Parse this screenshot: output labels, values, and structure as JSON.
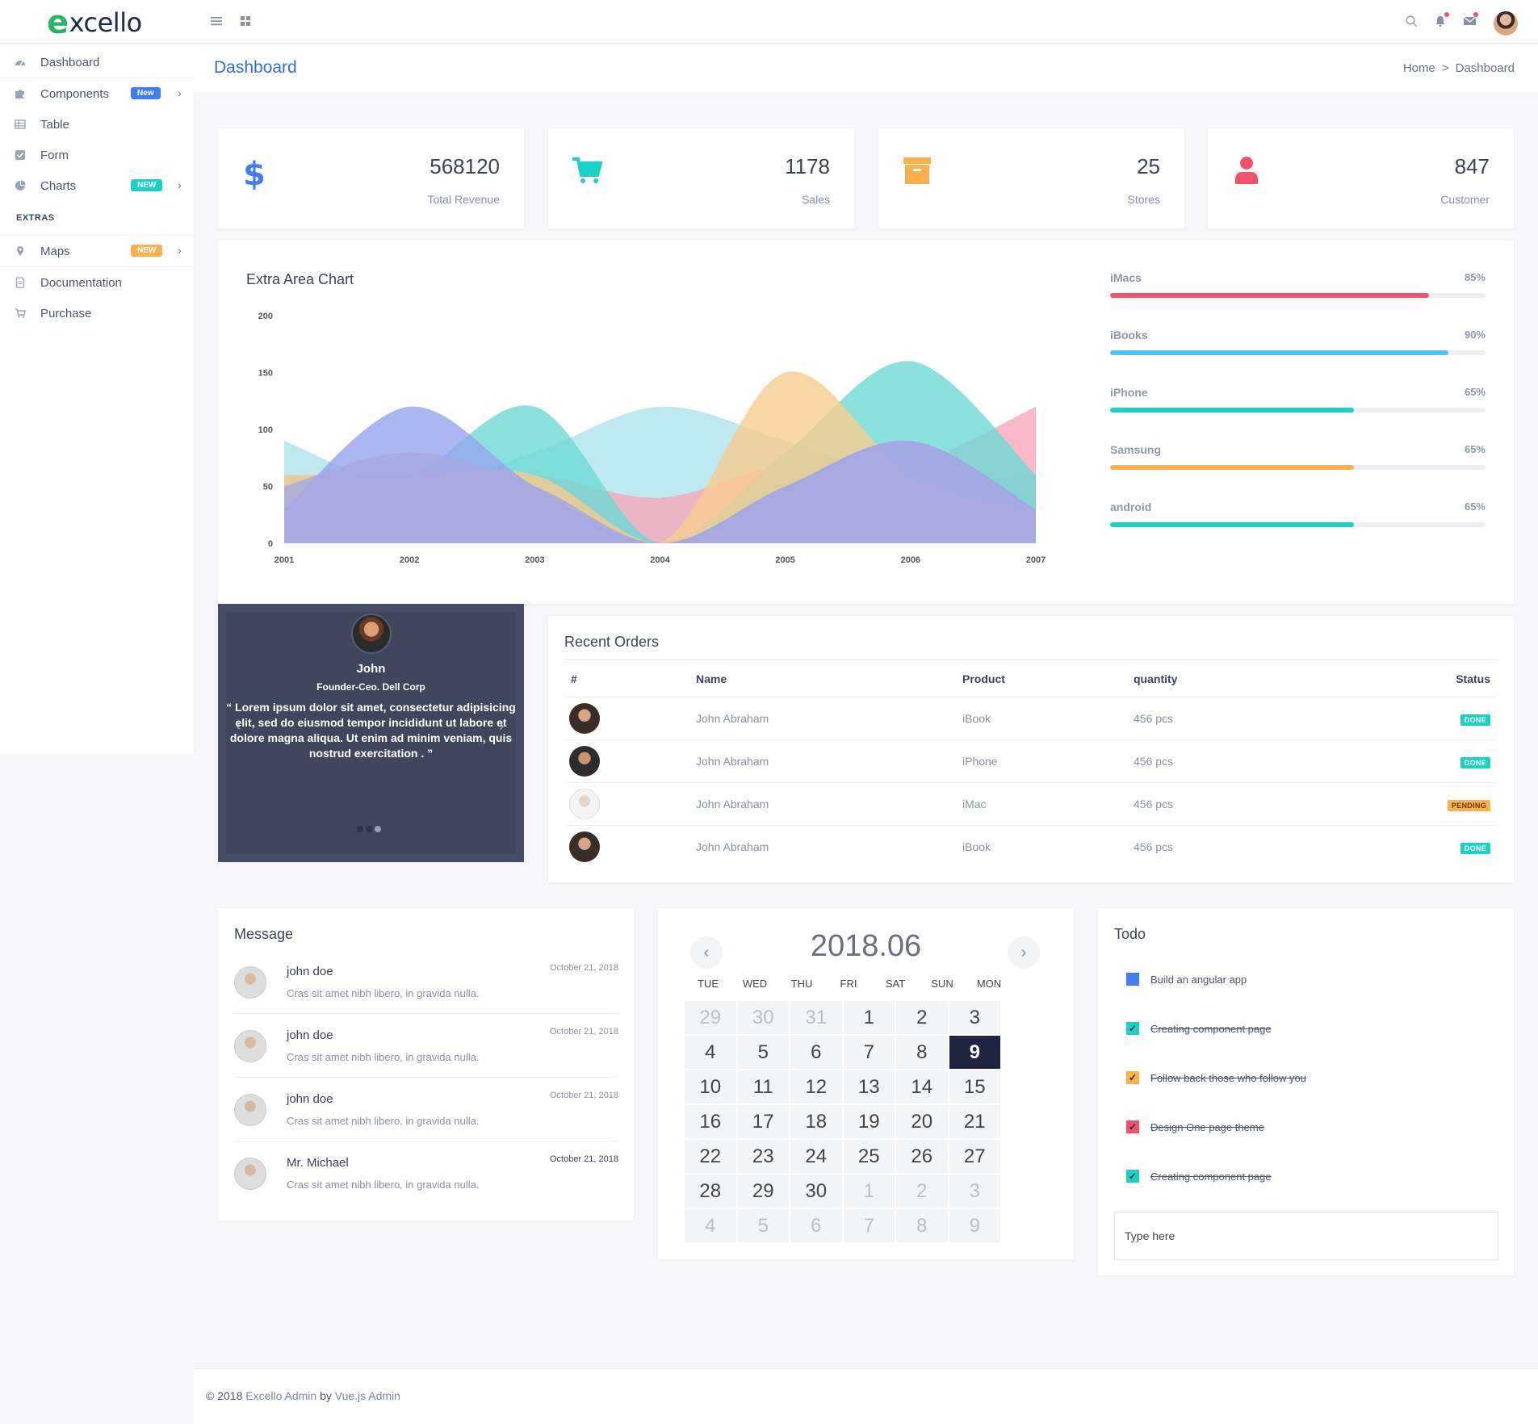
{
  "brand": {
    "logo_e": "e",
    "logo_rest": "xcello"
  },
  "topbar": {
    "icons": [
      "menu-icon",
      "grid-icon",
      "search-icon",
      "bell-icon",
      "mail-icon"
    ]
  },
  "sidebar": {
    "items": [
      {
        "label": "Dashboard",
        "icon": "dashboard-icon"
      },
      {
        "label": "Components",
        "icon": "puzzle-icon",
        "badge": "New",
        "badge_color": "#3f7ef6"
      },
      {
        "label": "Table",
        "icon": "table-icon"
      },
      {
        "label": "Form",
        "icon": "check-square-icon"
      },
      {
        "label": "Charts",
        "icon": "pie-chart-icon",
        "badge": "NEW",
        "badge_color": "#1ad1c5"
      }
    ],
    "section": "EXTRAS",
    "extras": [
      {
        "label": "Maps",
        "icon": "map-pin-icon",
        "badge": "NEW",
        "badge_color": "#f9b04d"
      },
      {
        "label": "Documentation",
        "icon": "document-icon"
      },
      {
        "label": "Purchase",
        "icon": "cart-icon"
      }
    ]
  },
  "page": {
    "title": "Dashboard",
    "breadcrumb_home": "Home",
    "breadcrumb_sep": ">",
    "breadcrumb_current": "Dashboard"
  },
  "stats": [
    {
      "value": "568120",
      "label": "Total Revenue",
      "icon": "dollar-icon",
      "color": "#3f7ef6"
    },
    {
      "value": "1178",
      "label": "Sales",
      "icon": "shopping-cart-icon",
      "color": "#1ad1c5"
    },
    {
      "value": "25",
      "label": "Stores",
      "icon": "archive-box-icon",
      "color": "#f9b04d"
    },
    {
      "value": "847",
      "label": "Customer",
      "icon": "user-icon",
      "color": "#f1536e"
    }
  ],
  "chart_data": {
    "type": "area",
    "title": "Extra Area Chart",
    "x": [
      "2001",
      "2002",
      "2003",
      "2004",
      "2005",
      "2006",
      "2007"
    ],
    "ylim": [
      0,
      200
    ],
    "yticks": [
      0,
      50,
      100,
      150,
      200
    ],
    "series": [
      {
        "color": "#aee3ee",
        "values": [
          90,
          50,
          80,
          120,
          90,
          55,
          60
        ]
      },
      {
        "color": "#f7a7bb",
        "values": [
          60,
          60,
          60,
          40,
          70,
          70,
          120
        ]
      },
      {
        "color": "#6dd9d6",
        "values": [
          60,
          60,
          120,
          0,
          80,
          160,
          60
        ]
      },
      {
        "color": "#f8cc8f",
        "values": [
          60,
          60,
          60,
          0,
          150,
          60,
          30
        ]
      },
      {
        "color": "#94a4eb",
        "values": [
          30,
          120,
          50,
          0,
          50,
          90,
          30
        ]
      },
      {
        "color": "#a6a7e0",
        "values": [
          50,
          80,
          50,
          0,
          50,
          90,
          30
        ]
      }
    ],
    "grid": false,
    "legend": "none"
  },
  "progress": [
    {
      "label": "iMacs",
      "pct": 85,
      "text": "85%",
      "color": "#f1536e"
    },
    {
      "label": "iBooks",
      "pct": 90,
      "text": "90%",
      "color": "#4fc3e8"
    },
    {
      "label": "iPhone",
      "pct": 65,
      "text": "65%",
      "color": "#1ad1c5"
    },
    {
      "label": "Samsung",
      "pct": 65,
      "text": "65%",
      "color": "#f9b04d"
    },
    {
      "label": "android",
      "pct": 65,
      "text": "65%",
      "color": "#1ad1c5"
    }
  ],
  "testimonial": {
    "name": "John",
    "role": "Founder-Ceo. Dell Corp",
    "quote": "“ Lorem ipsum dolor sit amet, consectetur adipisicing elit, sed do eiusmod tempor incididunt ut labore et dolore magna aliqua. Ut enim ad minim veniam, quis nostrud exercitation . ”",
    "prev": "‹",
    "next": "›"
  },
  "orders": {
    "title": "Recent Orders",
    "columns": [
      "#",
      "Name",
      "Product",
      "quantity",
      "Status"
    ],
    "rows": [
      {
        "name": "John Abraham",
        "product": "iBook",
        "qty": "456 pcs",
        "status": "DONE",
        "status_color": "#1ad1c5"
      },
      {
        "name": "John Abraham",
        "product": "iPhone",
        "qty": "456 pcs",
        "status": "DONE",
        "status_color": "#1ad1c5"
      },
      {
        "name": "John Abraham",
        "product": "iMac",
        "qty": "456 pcs",
        "status": "PENDING",
        "status_color": "#f9b04d"
      },
      {
        "name": "John Abraham",
        "product": "iBook",
        "qty": "456 pcs",
        "status": "DONE",
        "status_color": "#1ad1c5"
      }
    ]
  },
  "messages": {
    "title": "Message",
    "items": [
      {
        "name": "john doe",
        "text": "Cras sit amet nibh libero, in gravida nulla.",
        "date": "October 21, 2018"
      },
      {
        "name": "john doe",
        "text": "Cras sit amet nibh libero, in gravida nulla.",
        "date": "October 21, 2018"
      },
      {
        "name": "john doe",
        "text": "Cras sit amet nibh libero, in gravida nulla.",
        "date": "October 21, 2018"
      },
      {
        "name": "Mr. Michael",
        "text": "Cras sit amet nibh libero, in gravida nulla.",
        "date": "October 21, 2018"
      }
    ]
  },
  "calendar": {
    "title": "2018.06",
    "prev": "‹",
    "next": "›",
    "dow": [
      "TUE",
      "WED",
      "THU",
      "FRI",
      "SAT",
      "SUN",
      "MON"
    ],
    "days": [
      [
        "29",
        "30",
        "31",
        "1",
        "2",
        "3"
      ],
      [
        "4",
        "5",
        "6",
        "7",
        "8",
        "9"
      ],
      [
        "10",
        "11",
        "12",
        "13",
        "14",
        "15"
      ],
      [
        "16",
        "17",
        "18",
        "19",
        "20",
        "21"
      ],
      [
        "22",
        "23",
        "24",
        "25",
        "26",
        "27"
      ],
      [
        "28",
        "29",
        "30",
        "1",
        "2",
        "3"
      ],
      [
        "4",
        "5",
        "6",
        "7",
        "8",
        "9"
      ]
    ],
    "selected": "9"
  },
  "todo": {
    "title": "Todo",
    "items": [
      {
        "text": "Build an angular app",
        "done": false,
        "color": "#3f7ef6"
      },
      {
        "text": "Creating component page",
        "done": true,
        "color": "#1ad1c5"
      },
      {
        "text": "Follow back those who follow you",
        "done": true,
        "color": "#f9b04d"
      },
      {
        "text": "Design One page theme",
        "done": true,
        "color": "#f1536e"
      },
      {
        "text": "Creating component page",
        "done": true,
        "color": "#1ad1c5"
      }
    ],
    "placeholder": "Type here"
  },
  "footer": {
    "prefix": "© 2018 ",
    "brand": "Excello Admin",
    "by": " by ",
    "link": "Vue.js Admin"
  }
}
